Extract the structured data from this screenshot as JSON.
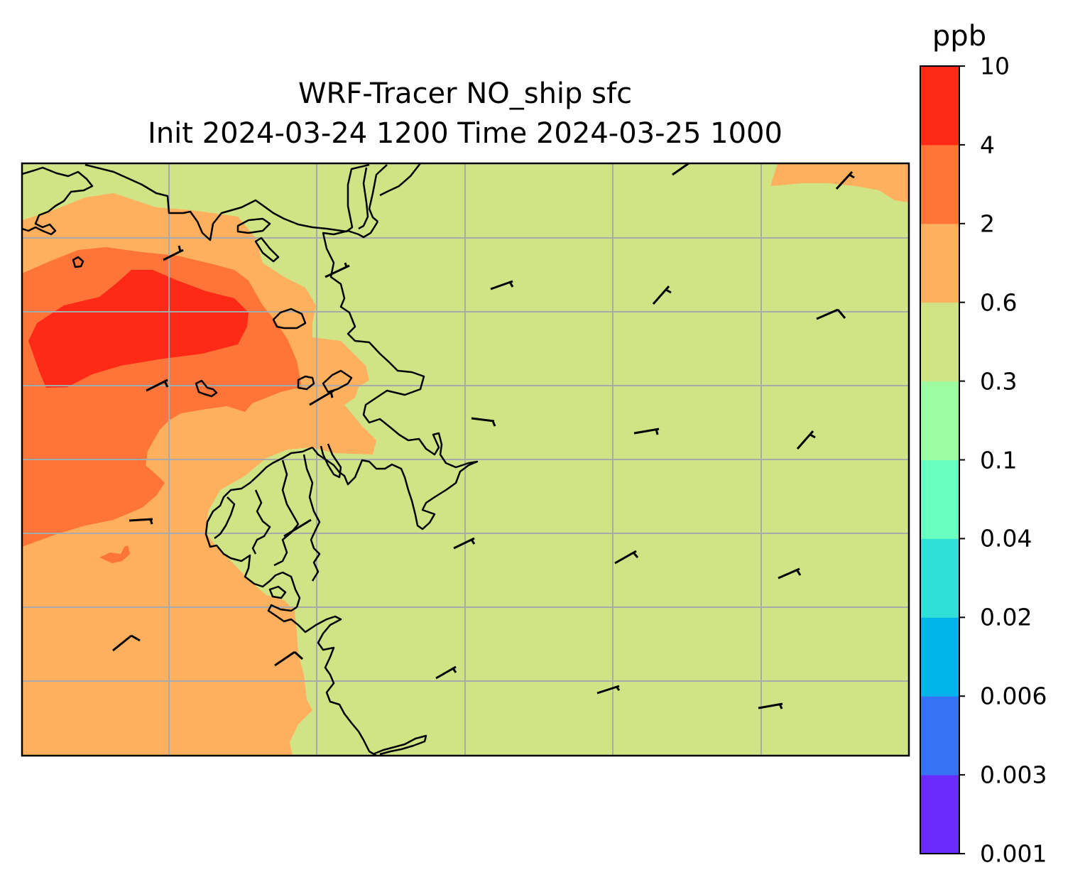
{
  "figure": {
    "title_line1": "WRF-Tracer NO_ship sfc",
    "title_line2": "Init 2024-03-24 1200 Time 2024-03-25 1000"
  },
  "colorbar": {
    "unit": "ppb",
    "levels": [
      "0.001",
      "0.003",
      "0.006",
      "0.02",
      "0.04",
      "0.1",
      "0.3",
      "0.6",
      "2",
      "4",
      "10"
    ],
    "colors": [
      "#6a2bff",
      "#3772f5",
      "#00b4ea",
      "#30e0d8",
      "#68ffc0",
      "#9dfca0",
      "#d0e385",
      "#ffb05e",
      "#ff7438",
      "#ff2a16"
    ]
  },
  "map": {
    "background_color": "#d0e385",
    "coastline_color": "#000000",
    "gridline_color": "#aaaaaa",
    "gridlines": true,
    "wind_barbs": true
  }
}
